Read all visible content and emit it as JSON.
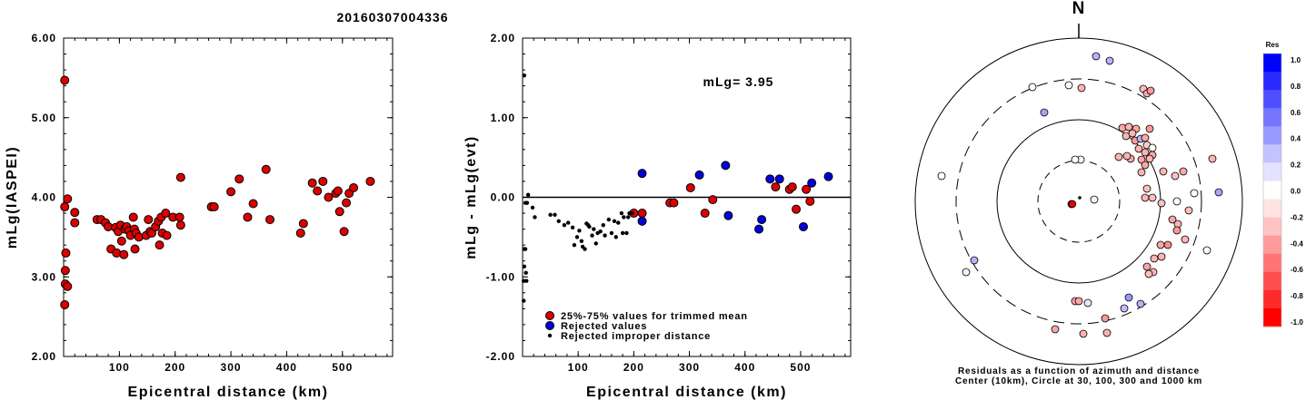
{
  "title": "20160307004336",
  "colors": {
    "red": "#dd0000",
    "blue": "#0000dd",
    "black": "#000000"
  },
  "chart_data": [
    {
      "type": "scatter",
      "ylabel": "mLg(IASPEI)",
      "xlabel": "Epicentral distance (km)",
      "xlim": [
        0,
        590
      ],
      "ylim": [
        2.0,
        6.0
      ],
      "xticks": [
        100,
        200,
        300,
        400,
        500
      ],
      "xtick_labels": [
        "100",
        "200",
        "300",
        "400",
        "500"
      ],
      "yticks": [
        2.0,
        3.0,
        4.0,
        5.0,
        6.0
      ],
      "ytick_labels": [
        "2.00",
        "3.00",
        "4.00",
        "5.00",
        "6.00"
      ],
      "series": [
        {
          "marker": "red-circle",
          "points": [
            [
              2,
              5.47
            ],
            [
              2,
              3.88
            ],
            [
              3,
              3.08
            ],
            [
              3,
              2.91
            ],
            [
              2,
              2.65
            ],
            [
              4,
              3.3
            ],
            [
              7,
              3.98
            ],
            [
              7,
              2.88
            ],
            [
              20,
              3.81
            ],
            [
              20,
              3.68
            ],
            [
              60,
              3.72
            ],
            [
              67,
              3.72
            ],
            [
              75,
              3.68
            ],
            [
              80,
              3.63
            ],
            [
              85,
              3.35
            ],
            [
              93,
              3.62
            ],
            [
              95,
              3.3
            ],
            [
              98,
              3.57
            ],
            [
              102,
              3.65
            ],
            [
              104,
              3.45
            ],
            [
              108,
              3.28
            ],
            [
              110,
              3.6
            ],
            [
              113,
              3.63
            ],
            [
              117,
              3.58
            ],
            [
              120,
              3.52
            ],
            [
              125,
              3.75
            ],
            [
              127,
              3.6
            ],
            [
              128,
              3.35
            ],
            [
              130,
              3.55
            ],
            [
              135,
              3.5
            ],
            [
              148,
              3.52
            ],
            [
              152,
              3.72
            ],
            [
              155,
              3.57
            ],
            [
              158,
              3.55
            ],
            [
              165,
              3.63
            ],
            [
              170,
              3.7
            ],
            [
              172,
              3.4
            ],
            [
              175,
              3.75
            ],
            [
              177,
              3.55
            ],
            [
              183,
              3.8
            ],
            [
              185,
              3.52
            ],
            [
              196,
              3.75
            ],
            [
              208,
              3.75
            ],
            [
              210,
              3.65
            ],
            [
              210,
              4.25
            ],
            [
              265,
              3.88
            ],
            [
              270,
              3.88
            ],
            [
              300,
              4.07
            ],
            [
              315,
              4.23
            ],
            [
              330,
              3.75
            ],
            [
              340,
              3.92
            ],
            [
              363,
              4.35
            ],
            [
              370,
              3.72
            ],
            [
              425,
              3.55
            ],
            [
              430,
              3.67
            ],
            [
              446,
              4.18
            ],
            [
              455,
              4.08
            ],
            [
              465,
              4.2
            ],
            [
              475,
              4.0
            ],
            [
              488,
              4.05
            ],
            [
              492,
              4.08
            ],
            [
              495,
              3.82
            ],
            [
              503,
              3.57
            ],
            [
              507,
              3.93
            ],
            [
              512,
              4.05
            ],
            [
              520,
              4.12
            ],
            [
              550,
              4.2
            ]
          ]
        }
      ]
    },
    {
      "type": "scatter",
      "ylabel": "mLg - mLg(evt)",
      "xlabel": "Epicentral distance (km)",
      "annotation": "mLg= 3.95",
      "xlim": [
        0,
        590
      ],
      "ylim": [
        -2.0,
        2.0
      ],
      "xticks": [
        100,
        200,
        300,
        400,
        500
      ],
      "xtick_labels": [
        "100",
        "200",
        "300",
        "400",
        "500"
      ],
      "yticks": [
        -2.0,
        -1.0,
        0.0,
        1.0,
        2.0
      ],
      "ytick_labels": [
        "-2.00",
        "-1.00",
        "0.00",
        "1.00",
        "2.00"
      ],
      "legend": [
        {
          "marker": "red-circle",
          "label": "25%-75% values for trimmed mean"
        },
        {
          "marker": "blue-circle",
          "label": "Rejected values"
        },
        {
          "marker": "black-dot",
          "label": "Rejected improper distance"
        }
      ],
      "series": [
        {
          "marker": "red-circle",
          "points": [
            [
              200,
              -0.2
            ],
            [
              215,
              -0.2
            ],
            [
              265,
              -0.07
            ],
            [
              272,
              -0.07
            ],
            [
              302,
              0.12
            ],
            [
              328,
              -0.2
            ],
            [
              342,
              -0.03
            ],
            [
              455,
              0.13
            ],
            [
              480,
              0.1
            ],
            [
              485,
              0.13
            ],
            [
              492,
              -0.15
            ],
            [
              510,
              0.1
            ],
            [
              517,
              -0.05
            ]
          ]
        },
        {
          "marker": "blue-circle",
          "points": [
            [
              215,
              0.3
            ],
            [
              215,
              -0.3
            ],
            [
              318,
              0.28
            ],
            [
              365,
              0.4
            ],
            [
              370,
              -0.23
            ],
            [
              425,
              -0.4
            ],
            [
              430,
              -0.28
            ],
            [
              445,
              0.23
            ],
            [
              462,
              0.23
            ],
            [
              505,
              -0.37
            ],
            [
              520,
              0.18
            ],
            [
              550,
              0.26
            ]
          ]
        },
        {
          "marker": "black-dot",
          "points": [
            [
              3,
              1.53
            ],
            [
              5,
              -0.07
            ],
            [
              8,
              -0.07
            ],
            [
              10,
              0.03
            ],
            [
              3,
              -0.65
            ],
            [
              5,
              -0.65
            ],
            [
              3,
              -0.87
            ],
            [
              6,
              -0.95
            ],
            [
              2,
              -1.05
            ],
            [
              7,
              -1.05
            ],
            [
              2,
              -1.3
            ],
            [
              18,
              -0.13
            ],
            [
              22,
              -0.25
            ],
            [
              50,
              -0.22
            ],
            [
              58,
              -0.22
            ],
            [
              65,
              -0.3
            ],
            [
              75,
              -0.35
            ],
            [
              82,
              -0.32
            ],
            [
              90,
              -0.38
            ],
            [
              93,
              -0.6
            ],
            [
              98,
              -0.5
            ],
            [
              102,
              -0.42
            ],
            [
              106,
              -0.55
            ],
            [
              108,
              -0.62
            ],
            [
              112,
              -0.65
            ],
            [
              115,
              -0.33
            ],
            [
              118,
              -0.35
            ],
            [
              120,
              -0.37
            ],
            [
              125,
              -0.48
            ],
            [
              128,
              -0.4
            ],
            [
              132,
              -0.58
            ],
            [
              135,
              -0.45
            ],
            [
              140,
              -0.43
            ],
            [
              145,
              -0.35
            ],
            [
              148,
              -0.48
            ],
            [
              155,
              -0.28
            ],
            [
              160,
              -0.45
            ],
            [
              165,
              -0.3
            ],
            [
              168,
              -0.5
            ],
            [
              172,
              -0.32
            ],
            [
              178,
              -0.2
            ],
            [
              180,
              -0.45
            ],
            [
              182,
              -0.25
            ],
            [
              187,
              -0.45
            ],
            [
              190,
              -0.25
            ],
            [
              192,
              -0.2
            ],
            [
              197,
              -0.2
            ]
          ]
        }
      ],
      "reference_line": 0.0
    },
    {
      "type": "scatter",
      "subtype": "polar-residuals",
      "north_label": "N",
      "caption": [
        "Residuals as a function of azimuth and distance",
        "Center (10km), Circle at 30, 100, 300 and 1000 km"
      ],
      "colorbar": {
        "title": "Res",
        "tick_labels": [
          "1.0",
          "0.8",
          "0.6",
          "0.4",
          "0.2",
          "0.0",
          "-0.2",
          "-0.4",
          "-0.6",
          "-0.8",
          "-1.0"
        ],
        "range": [
          -1.0,
          1.0
        ],
        "colors": [
          "#0000ff",
          "#2a2aff",
          "#4f4fff",
          "#7575ff",
          "#9b9bff",
          "#c3c3ff",
          "#e3e3ff",
          "#ffffff",
          "#ffe3e3",
          "#ffc3c3",
          "#ff9b9b",
          "#ff7575",
          "#ff4f4f",
          "#ff2a2a",
          "#ff0000"
        ]
      },
      "series": [
        {
          "name": "stations",
          "points_residual": [
            -0.9,
            0.05,
            0.0,
            0.0,
            -0.3,
            -0.35,
            -0.4,
            -0.3,
            -0.35,
            -0.3,
            -0.2,
            0.3,
            0.0,
            -0.3,
            -0.35,
            -0.35,
            -0.3,
            -0.4,
            -0.35,
            -0.3,
            -0.3,
            -0.35,
            -0.35,
            -0.3,
            -0.3,
            -0.35,
            -0.3,
            -0.35,
            -0.3,
            -0.25,
            -0.25,
            -0.3,
            -0.3,
            0.0,
            -0.25,
            -0.25,
            -0.35,
            -0.3,
            -0.25,
            -0.3,
            -0.4,
            -0.45,
            -0.35,
            -0.3,
            -0.3,
            -0.35,
            -0.3,
            -0.25,
            0.4,
            0.3,
            0.25,
            0.3,
            0.3,
            -0.25,
            -0.35,
            -0.4,
            0.0,
            0.0,
            0.0,
            0.0,
            0.35,
            0.3,
            0.05,
            0.0,
            0.35,
            -0.35,
            -0.35,
            0.1,
            -0.4,
            -0.35,
            -0.3,
            -0.3
          ]
        }
      ]
    }
  ]
}
